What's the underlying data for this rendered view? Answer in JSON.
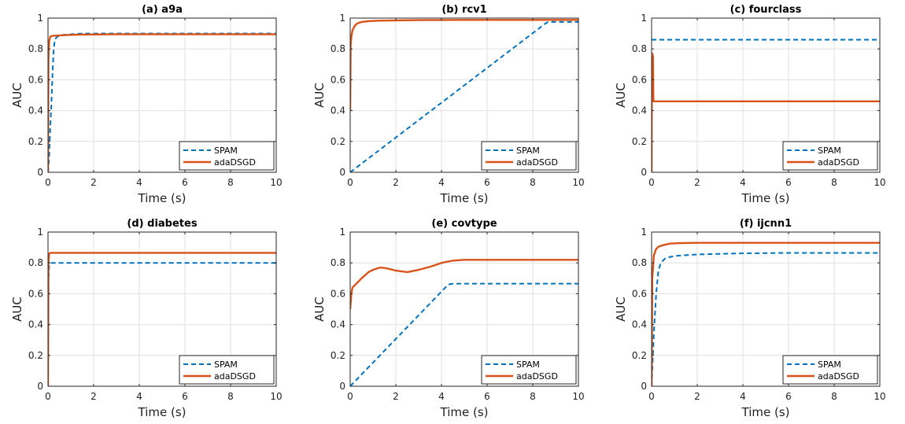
{
  "chart_data": [
    {
      "type": "line",
      "title": "(a) a9a",
      "xlabel": "Time (s)",
      "ylabel": "AUC",
      "xlim": [
        0,
        10
      ],
      "ylim": [
        0,
        1
      ],
      "xticks": [
        "0",
        "2",
        "4",
        "6",
        "8",
        "10"
      ],
      "yticks": [
        "0",
        "0.2",
        "0.4",
        "0.6",
        "0.8",
        "1"
      ],
      "grid": true,
      "legend": "bottom-right",
      "series": [
        {
          "name": "SPAM",
          "color": "#0072BD",
          "style": "dashed",
          "x": [
            0,
            0.05,
            0.1,
            0.15,
            0.2,
            0.25,
            0.3,
            0.4,
            0.6,
            1,
            1.5,
            3,
            6,
            10
          ],
          "y": [
            0,
            0.1,
            0.3,
            0.45,
            0.65,
            0.8,
            0.86,
            0.88,
            0.89,
            0.895,
            0.9,
            0.9,
            0.9,
            0.9
          ]
        },
        {
          "name": "adaDSGD",
          "color": "#D95319",
          "style": "solid",
          "x": [
            0,
            0.02,
            0.05,
            0.1,
            0.2,
            0.4,
            0.8,
            1.5,
            3,
            6,
            10
          ],
          "y": [
            0,
            0.75,
            0.85,
            0.88,
            0.885,
            0.887,
            0.89,
            0.893,
            0.895,
            0.895,
            0.895
          ]
        }
      ]
    },
    {
      "type": "line",
      "title": "(b) rcv1",
      "xlabel": "Time (s)",
      "ylabel": "AUC",
      "xlim": [
        0,
        10
      ],
      "ylim": [
        0,
        1
      ],
      "xticks": [
        "0",
        "2",
        "4",
        "6",
        "8",
        "10"
      ],
      "yticks": [
        "0",
        "0.2",
        "0.4",
        "0.6",
        "0.8",
        "1"
      ],
      "grid": true,
      "legend": "bottom-right",
      "series": [
        {
          "name": "SPAM",
          "color": "#0072BD",
          "style": "dashed",
          "x": [
            0,
            8.6,
            8.7,
            10
          ],
          "y": [
            0,
            0.97,
            0.975,
            0.975
          ]
        },
        {
          "name": "adaDSGD",
          "color": "#D95319",
          "style": "solid",
          "x": [
            0,
            0.02,
            0.05,
            0.1,
            0.2,
            0.3,
            0.5,
            0.8,
            1.2,
            2,
            3,
            5,
            10
          ],
          "y": [
            0.4,
            0.82,
            0.88,
            0.92,
            0.95,
            0.965,
            0.975,
            0.98,
            0.983,
            0.985,
            0.987,
            0.988,
            0.988
          ]
        }
      ]
    },
    {
      "type": "line",
      "title": "(c) fourclass",
      "xlabel": "Time (s)",
      "ylabel": "AUC",
      "xlim": [
        0,
        10
      ],
      "ylim": [
        0,
        1
      ],
      "xticks": [
        "0",
        "2",
        "4",
        "6",
        "8",
        "10"
      ],
      "yticks": [
        "0",
        "0.2",
        "0.4",
        "0.6",
        "0.8",
        "1"
      ],
      "grid": true,
      "legend": "bottom-right",
      "series": [
        {
          "name": "SPAM",
          "color": "#0072BD",
          "style": "dashed",
          "x": [
            0,
            10
          ],
          "y": [
            0.86,
            0.86
          ]
        },
        {
          "name": "adaDSGD",
          "color": "#D95319",
          "style": "solid",
          "x": [
            0,
            0.01,
            0.03,
            0.06,
            0.08,
            0.1,
            10
          ],
          "y": [
            0,
            0.6,
            0.77,
            0.75,
            0.46,
            0.46,
            0.46
          ]
        }
      ]
    },
    {
      "type": "line",
      "title": "(d) diabetes",
      "xlabel": "Time (s)",
      "ylabel": "AUC",
      "xlim": [
        0,
        10
      ],
      "ylim": [
        0,
        1
      ],
      "xticks": [
        "0",
        "2",
        "4",
        "6",
        "8",
        "10"
      ],
      "yticks": [
        "0",
        "0.2",
        "0.4",
        "0.6",
        "0.8",
        "1"
      ],
      "grid": true,
      "legend": "bottom-right",
      "series": [
        {
          "name": "SPAM",
          "color": "#0072BD",
          "style": "dashed",
          "x": [
            0,
            0.02,
            0.05,
            0.1,
            10
          ],
          "y": [
            0.55,
            0.7,
            0.78,
            0.8,
            0.8
          ]
        },
        {
          "name": "adaDSGD",
          "color": "#D95319",
          "style": "solid",
          "x": [
            0,
            0.02,
            0.05,
            0.1,
            10
          ],
          "y": [
            0,
            0.8,
            0.86,
            0.865,
            0.865
          ]
        }
      ]
    },
    {
      "type": "line",
      "title": "(e) covtype",
      "xlabel": "Time (s)",
      "ylabel": "AUC",
      "xlim": [
        0,
        10
      ],
      "ylim": [
        0,
        1
      ],
      "xticks": [
        "0",
        "2",
        "4",
        "6",
        "8",
        "10"
      ],
      "yticks": [
        "0",
        "0.2",
        "0.4",
        "0.6",
        "0.8",
        "1"
      ],
      "grid": true,
      "legend": "bottom-right",
      "series": [
        {
          "name": "SPAM",
          "color": "#0072BD",
          "style": "dashed",
          "x": [
            0,
            4.3,
            4.5,
            10
          ],
          "y": [
            0,
            0.66,
            0.665,
            0.665
          ]
        },
        {
          "name": "adaDSGD",
          "color": "#D95319",
          "style": "solid",
          "x": [
            0,
            0.05,
            0.1,
            0.3,
            0.5,
            0.8,
            1.0,
            1.3,
            1.6,
            2.0,
            2.5,
            3.0,
            3.5,
            4.0,
            4.5,
            5,
            7,
            10
          ],
          "y": [
            0.5,
            0.6,
            0.64,
            0.67,
            0.7,
            0.74,
            0.755,
            0.77,
            0.765,
            0.75,
            0.74,
            0.755,
            0.775,
            0.8,
            0.815,
            0.82,
            0.82,
            0.82
          ]
        }
      ]
    },
    {
      "type": "line",
      "title": "(f) ijcnn1",
      "xlabel": "Time (s)",
      "ylabel": "AUC",
      "xlim": [
        0,
        10
      ],
      "ylim": [
        0,
        1
      ],
      "xticks": [
        "0",
        "2",
        "4",
        "6",
        "8",
        "10"
      ],
      "yticks": [
        "0",
        "0.2",
        "0.4",
        "0.6",
        "0.8",
        "1"
      ],
      "grid": true,
      "legend": "bottom-right",
      "series": [
        {
          "name": "SPAM",
          "color": "#0072BD",
          "style": "dashed",
          "x": [
            0,
            0.1,
            0.2,
            0.3,
            0.4,
            0.6,
            1.0,
            2,
            4,
            6,
            10
          ],
          "y": [
            0,
            0.35,
            0.6,
            0.75,
            0.8,
            0.83,
            0.845,
            0.855,
            0.862,
            0.865,
            0.865
          ]
        },
        {
          "name": "adaDSGD",
          "color": "#D95319",
          "style": "solid",
          "x": [
            0,
            0.03,
            0.1,
            0.2,
            0.3,
            0.5,
            0.8,
            1.2,
            2,
            4,
            10
          ],
          "y": [
            0,
            0.7,
            0.85,
            0.89,
            0.905,
            0.915,
            0.925,
            0.928,
            0.93,
            0.93,
            0.93
          ]
        }
      ]
    }
  ]
}
